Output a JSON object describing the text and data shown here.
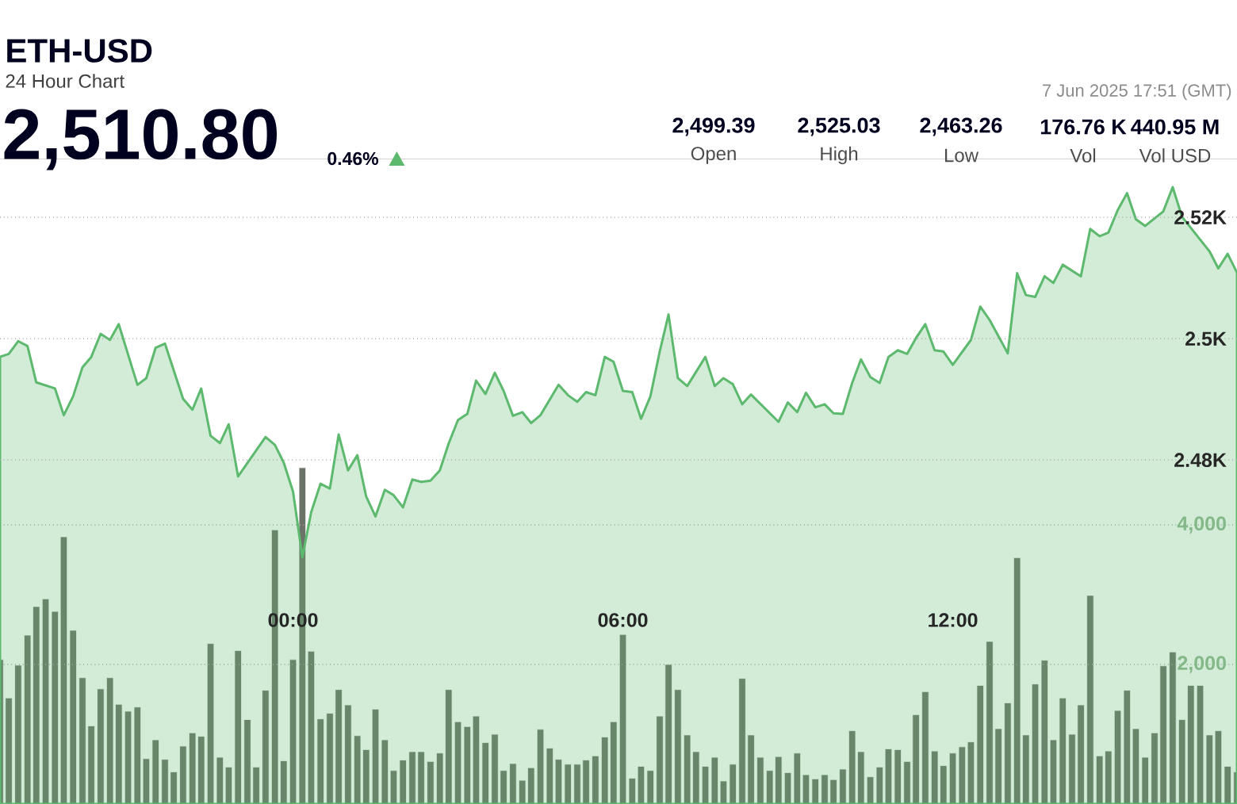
{
  "chart_data": {
    "type": "area",
    "title": "ETH-USD",
    "subtitle": "24 Hour Chart",
    "annotations": [
      "2,510.80",
      "0.46%",
      "7 Jun 2025 17:51 (GMT)",
      "2,499.39",
      "Open",
      "2,525.03",
      "High",
      "2,463.26",
      "Low",
      "176.76 K",
      "Vol",
      "440.95 M",
      "Vol USD"
    ],
    "xlim": [
      -5.33,
      17.17
    ],
    "xticks": [
      {
        "value": 0,
        "label": "00:00"
      },
      {
        "value": 6,
        "label": "06:00"
      },
      {
        "value": 12,
        "label": "12:00"
      }
    ],
    "ylim": [
      2423.3,
      2529.7
    ],
    "yticks": [
      {
        "value": 2480,
        "label": "2.48K"
      },
      {
        "value": 2500,
        "label": "2.5K"
      },
      {
        "value": 2520,
        "label": "2.52K"
      }
    ],
    "y2lim": [
      0,
      9250
    ],
    "y2ticks": [
      {
        "value": 2000,
        "label": "2,000"
      },
      {
        "value": 4000,
        "label": "4,000"
      }
    ],
    "grid": "y",
    "series": [
      {
        "color": "#5cb96e",
        "x": [
          -5.33,
          -5.17,
          -5,
          -4.83,
          -4.67,
          -4.33,
          -4.17,
          -4,
          -3.83,
          -3.67,
          -3.5,
          -3.33,
          -3.17,
          -2.83,
          -2.67,
          -2.5,
          -2.33,
          -2,
          -1.83,
          -1.67,
          -1.5,
          -1.33,
          -1.17,
          -1,
          -0.5,
          -0.33,
          -0.17,
          0,
          0.17,
          0.33,
          0.5,
          0.67,
          0.83,
          1,
          1.17,
          1.33,
          1.5,
          1.67,
          1.83,
          2,
          2.17,
          2.33,
          2.5,
          2.67,
          2.83,
          3,
          3.17,
          3.33,
          3.5,
          3.67,
          3.83,
          4,
          4.17,
          4.33,
          4.5,
          4.83,
          5,
          5.17,
          5.33,
          5.5,
          5.67,
          5.83,
          6,
          6.17,
          6.33,
          6.5,
          6.67,
          6.83,
          7,
          7.17,
          7.5,
          7.67,
          7.83,
          8,
          8.17,
          8.33,
          8.83,
          9,
          9.17,
          9.33,
          9.5,
          9.67,
          9.83,
          10,
          10.17,
          10.33,
          10.5,
          10.67,
          10.83,
          11,
          11.17,
          11.33,
          11.5,
          11.67,
          11.83,
          12,
          12.33,
          12.5,
          12.67,
          13,
          13.17,
          13.33,
          13.5,
          13.67,
          13.83,
          14,
          14.33,
          14.5,
          14.67,
          14.83,
          15,
          15.17,
          15.33,
          15.5,
          15.83,
          16,
          16.17,
          16.67,
          16.83,
          17,
          17.17
        ],
        "values": [
          2497.0,
          2497.5,
          2499.6,
          2498.8,
          2492.8,
          2491.8,
          2487.4,
          2490.5,
          2495.3,
          2497.0,
          2500.8,
          2499.8,
          2502.4,
          2492.4,
          2493.5,
          2498.5,
          2499.2,
          2490.1,
          2488.3,
          2491.8,
          2484.0,
          2482.8,
          2485.9,
          2477.3,
          2483.8,
          2482.5,
          2479.6,
          2474.8,
          2464.0,
          2471.4,
          2476.1,
          2475.3,
          2484.2,
          2478.3,
          2480.8,
          2474.0,
          2470.7,
          2475.1,
          2474.2,
          2472.2,
          2476.8,
          2476.4,
          2476.6,
          2478.3,
          2482.7,
          2486.6,
          2487.6,
          2493.1,
          2490.9,
          2494.4,
          2491.4,
          2487.3,
          2487.9,
          2486.1,
          2487.4,
          2492.4,
          2490.7,
          2489.6,
          2491.2,
          2490.7,
          2497.0,
          2496.2,
          2491.4,
          2491.2,
          2486.8,
          2490.5,
          2497.9,
          2504.0,
          2493.5,
          2492.2,
          2497.0,
          2492.2,
          2493.5,
          2492.5,
          2489.2,
          2490.8,
          2486.3,
          2489.5,
          2487.9,
          2491.1,
          2488.7,
          2489.2,
          2487.7,
          2487.6,
          2492.7,
          2496.6,
          2493.7,
          2492.7,
          2497.0,
          2498.1,
          2497.5,
          2500.1,
          2502.4,
          2498.1,
          2497.9,
          2495.7,
          2499.8,
          2505.3,
          2503.1,
          2497.6,
          2510.8,
          2507.2,
          2506.9,
          2510.3,
          2509.2,
          2512.2,
          2510.3,
          2518.1,
          2516.9,
          2517.5,
          2521.2,
          2524.0,
          2519.7,
          2518.6,
          2521.0,
          2525.0,
          2520.1,
          2514.4,
          2511.6,
          2514.0,
          2510.9
        ]
      },
      {
        "type": "bar",
        "axis": "y2",
        "color": "#6b7268",
        "x": [
          -5.33,
          -5.17,
          -5,
          -4.83,
          -4.67,
          -4.5,
          -4.33,
          -4.17,
          -4,
          -3.83,
          -3.67,
          -3.5,
          -3.33,
          -3.17,
          -3,
          -2.83,
          -2.67,
          -2.5,
          -2.33,
          -2.17,
          -2,
          -1.83,
          -1.67,
          -1.5,
          -1.33,
          -1.17,
          -1,
          -0.83,
          -0.67,
          -0.5,
          -0.33,
          -0.17,
          0,
          0.17,
          0.33,
          0.5,
          0.67,
          0.83,
          1,
          1.17,
          1.33,
          1.5,
          1.67,
          1.83,
          2,
          2.17,
          2.33,
          2.5,
          2.67,
          2.83,
          3,
          3.17,
          3.33,
          3.5,
          3.67,
          3.83,
          4,
          4.17,
          4.33,
          4.5,
          4.67,
          4.83,
          5,
          5.17,
          5.33,
          5.5,
          5.67,
          5.83,
          6,
          6.17,
          6.33,
          6.5,
          6.67,
          6.83,
          7,
          7.17,
          7.33,
          7.5,
          7.67,
          7.83,
          8,
          8.17,
          8.33,
          8.5,
          8.67,
          8.83,
          9,
          9.17,
          9.33,
          9.5,
          9.67,
          9.83,
          10,
          10.17,
          10.33,
          10.5,
          10.67,
          10.83,
          11,
          11.17,
          11.33,
          11.5,
          11.67,
          11.83,
          12,
          12.17,
          12.33,
          12.5,
          12.67,
          12.83,
          13,
          13.17,
          13.33,
          13.5,
          13.67,
          13.83,
          14,
          14.17,
          14.33,
          14.5,
          14.67,
          14.83,
          15,
          15.17,
          15.33,
          15.5,
          15.67,
          15.83,
          16,
          16.17,
          16.33,
          16.5,
          16.67,
          16.83,
          17,
          17.17
        ],
        "values": [
          2070,
          1520,
          1990,
          2420,
          2830,
          2940,
          2760,
          3830,
          2490,
          1810,
          1120,
          1650,
          1810,
          1430,
          1330,
          1390,
          650,
          920,
          640,
          460,
          830,
          1020,
          970,
          2300,
          670,
          530,
          2200,
          1210,
          530,
          1630,
          3930,
          620,
          2070,
          4820,
          2190,
          1220,
          1300,
          1640,
          1420,
          980,
          780,
          1360,
          920,
          480,
          630,
          750,
          750,
          610,
          730,
          1640,
          1180,
          1110,
          1260,
          880,
          1000,
          480,
          580,
          340,
          520,
          1070,
          800,
          640,
          570,
          570,
          630,
          690,
          960,
          1180,
          2430,
          370,
          540,
          480,
          1260,
          2000,
          1640,
          990,
          750,
          540,
          670,
          330,
          570,
          1800,
          990,
          670,
          480,
          680,
          450,
          730,
          420,
          360,
          420,
          350,
          500,
          1050,
          750,
          390,
          530,
          790,
          780,
          610,
          1280,
          1610,
          760,
          550,
          730,
          820,
          890,
          1700,
          2330,
          1080,
          1450,
          3530,
          990,
          1720,
          2060,
          920,
          1520,
          1000,
          1420,
          2990,
          690,
          760,
          1340,
          1630,
          1080,
          670,
          1020,
          1980,
          2180,
          1210,
          1700,
          1700,
          990,
          1050,
          540,
          460
        ]
      }
    ]
  }
}
